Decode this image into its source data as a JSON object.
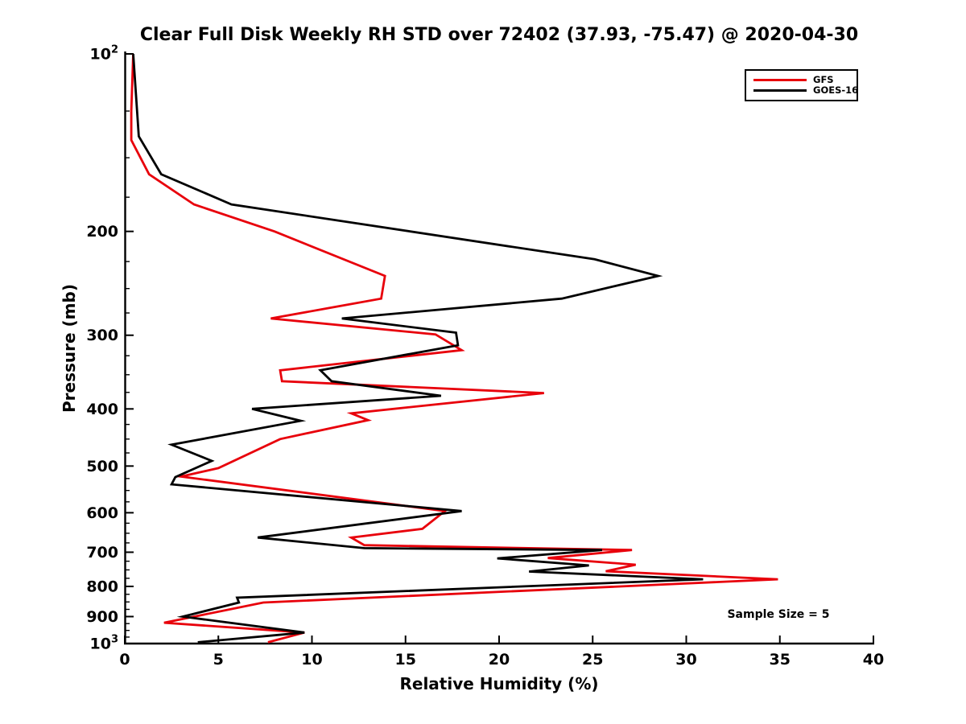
{
  "title": "Clear Full Disk Weekly RH STD over 72402 (37.93, -75.47) @ 2020-04-30",
  "annotation": {
    "sample_size": "Sample Size = 5"
  },
  "legend": {
    "items": [
      {
        "label": "GFS",
        "color": "#e8000b"
      },
      {
        "label": "GOES-16",
        "color": "#000000"
      }
    ]
  },
  "axes": {
    "x": {
      "label": "Relative Humidity (%)",
      "range": [
        0,
        40
      ],
      "ticks": [
        0,
        5,
        10,
        15,
        20,
        25,
        30,
        35,
        40
      ]
    },
    "y": {
      "label": "Pressure (mb)",
      "scale": "log",
      "range": [
        100,
        1000
      ],
      "direction": "increasing-downward",
      "major_ticks": [
        {
          "value": 100,
          "label": "10^2"
        },
        {
          "value": 200,
          "label": "200"
        },
        {
          "value": 300,
          "label": "300"
        },
        {
          "value": 400,
          "label": "400"
        },
        {
          "value": 500,
          "label": "500"
        },
        {
          "value": 600,
          "label": "600"
        },
        {
          "value": 700,
          "label": "700"
        },
        {
          "value": 800,
          "label": "800"
        },
        {
          "value": 900,
          "label": "900"
        },
        {
          "value": 1000,
          "label": "10^3"
        }
      ],
      "minor_tick_step": 25
    }
  },
  "chart_data": {
    "type": "line",
    "title": "Clear Full Disk Weekly RH STD over 72402 (37.93, -75.47) @ 2020-04-30",
    "xlabel": "Relative Humidity (%)",
    "ylabel": "Pressure (mb)",
    "xlim": [
      0,
      40
    ],
    "ylim": [
      100,
      1000
    ],
    "y_scale": "log",
    "y_inverted": true,
    "grid": false,
    "legend_position": "upper right",
    "annotation": "Sample Size = 5",
    "series": [
      {
        "name": "GFS",
        "color": "#e8000b",
        "points_pressure_rh": [
          [
            100,
            0.45
          ],
          [
            125,
            0.35
          ],
          [
            140,
            0.35
          ],
          [
            160,
            1.3
          ],
          [
            180,
            3.7
          ],
          [
            200,
            8.0
          ],
          [
            238,
            13.9
          ],
          [
            260,
            13.7
          ],
          [
            281,
            7.8
          ],
          [
            299,
            16.6
          ],
          [
            318,
            18.0
          ],
          [
            344,
            8.3
          ],
          [
            359,
            8.4
          ],
          [
            376,
            22.4
          ],
          [
            407,
            12.1
          ],
          [
            418,
            13.0
          ],
          [
            450,
            8.3
          ],
          [
            504,
            5.0
          ],
          [
            521,
            3.0
          ],
          [
            596,
            17.1
          ],
          [
            639,
            15.9
          ],
          [
            661,
            12.1
          ],
          [
            681,
            12.8
          ],
          [
            694,
            27.1
          ],
          [
            716,
            22.6
          ],
          [
            735,
            27.3
          ],
          [
            754,
            25.7
          ],
          [
            778,
            34.9
          ],
          [
            852,
            7.4
          ],
          [
            922,
            2.1
          ],
          [
            958,
            9.6
          ],
          [
            995,
            7.65
          ]
        ]
      },
      {
        "name": "GOES-16",
        "color": "#000000",
        "points_pressure_rh": [
          [
            100,
            0.45
          ],
          [
            138,
            0.75
          ],
          [
            160,
            1.95
          ],
          [
            180,
            5.7
          ],
          [
            223,
            25.1
          ],
          [
            238,
            28.5
          ],
          [
            260,
            23.35
          ],
          [
            281,
            11.6
          ],
          [
            297,
            17.7
          ],
          [
            312,
            17.8
          ],
          [
            344,
            10.45
          ],
          [
            359,
            11.05
          ],
          [
            380,
            16.9
          ],
          [
            400,
            6.8
          ],
          [
            419,
            9.4
          ],
          [
            460,
            2.5
          ],
          [
            490,
            4.65
          ],
          [
            522,
            2.7
          ],
          [
            537,
            2.5
          ],
          [
            596,
            18.0
          ],
          [
            661,
            7.1
          ],
          [
            689,
            12.8
          ],
          [
            694,
            25.5
          ],
          [
            717,
            19.9
          ],
          [
            737,
            24.8
          ],
          [
            755,
            21.6
          ],
          [
            778,
            30.9
          ],
          [
            836,
            6.0
          ],
          [
            852,
            6.1
          ],
          [
            900,
            3.1
          ],
          [
            958,
            9.6
          ],
          [
            995,
            3.9
          ]
        ]
      }
    ]
  }
}
